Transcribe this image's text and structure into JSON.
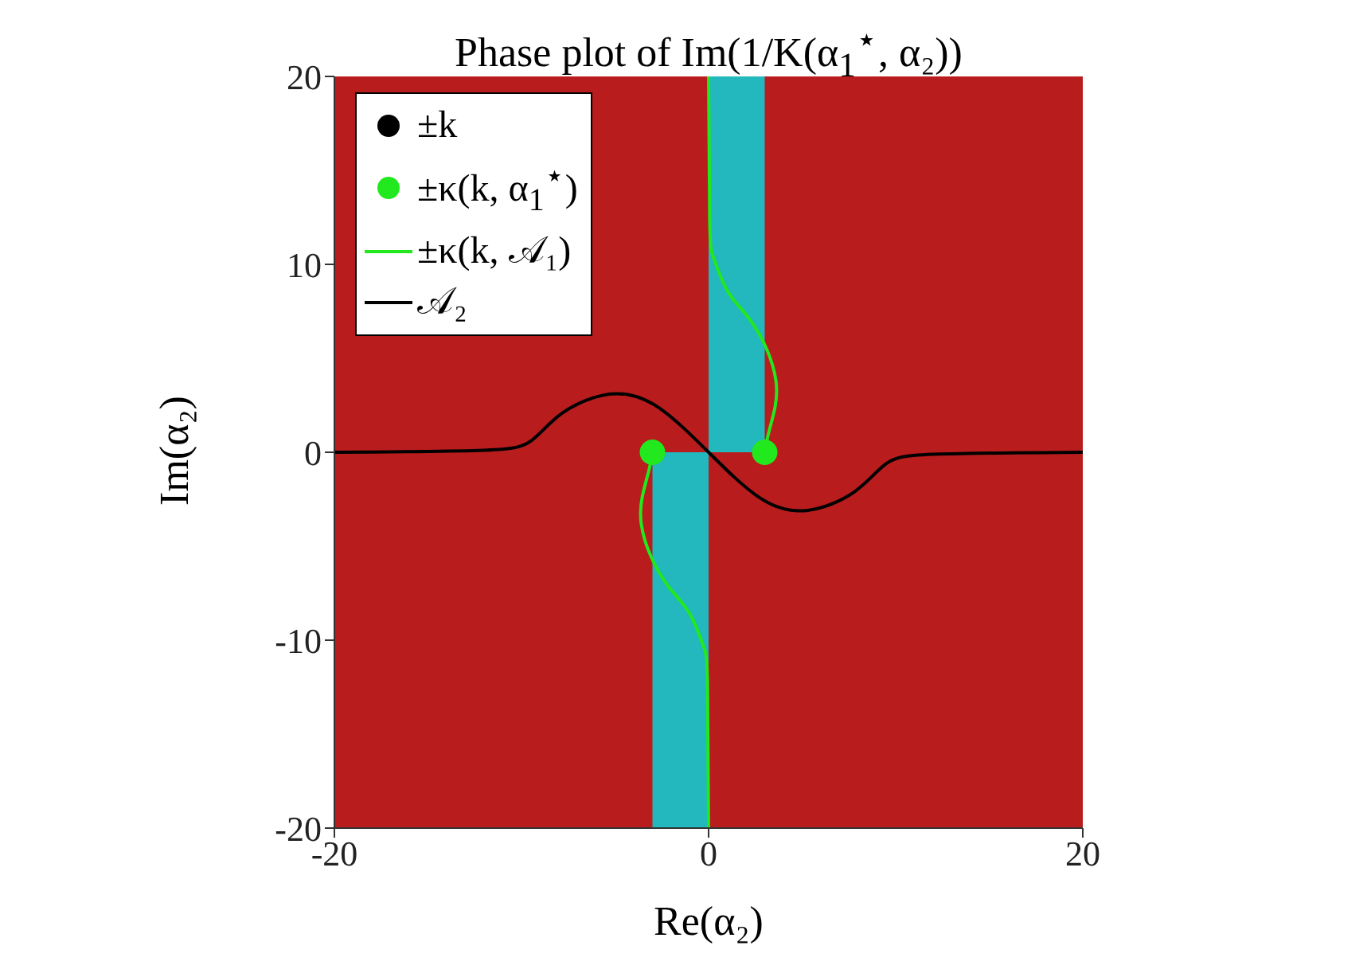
{
  "chart_data": {
    "type": "line",
    "title": "Phase plot of Im(1/K(α$_{1}$$^{⋆}$, α₂))",
    "xlabel": "Re(α₂)",
    "ylabel": "Im(α₂)",
    "xlim": [
      -20,
      20
    ],
    "xticks": [
      -20,
      0,
      20
    ],
    "ylim": [
      -20,
      20
    ],
    "yticks": [
      -20,
      -10,
      0,
      10,
      20
    ],
    "legend": "top left",
    "series": [
      {
        "type": "area",
        "color": "#22b8bd",
        "x": [
          0,
          3
        ],
        "values": [
          20,
          20
        ]
      },
      {
        "type": "area",
        "color": "#22b8bd",
        "x": [
          -3,
          0
        ],
        "values": [
          -20,
          -20
        ]
      },
      {
        "name": "±κ(k, 𝒜₁)",
        "color": "#22e81e",
        "x": [
          0,
          0.06,
          0.28,
          1.0,
          2.1,
          3.1,
          3.6,
          3.55,
          3.2,
          3.0,
          0,
          -3.0,
          -3.2,
          -3.55,
          -3.6,
          -3.1,
          -2.1,
          -1.0,
          -0.28,
          -0.06,
          0
        ],
        "values": [
          20,
          12.3,
          10.3,
          8.6,
          7.2,
          5.5,
          3.8,
          2.4,
          1.0,
          0,
          null,
          0,
          -1.0,
          -2.4,
          -3.8,
          -5.5,
          -7.2,
          -8.6,
          -10.3,
          -12.3,
          -20
        ]
      },
      {
        "name": "𝒜₂",
        "color": "#000000",
        "x": [
          -20,
          -12.3,
          -9.5,
          -7.8,
          -5.2,
          -2.7,
          0,
          2.7,
          5.2,
          7.8,
          9.5,
          12.3,
          20
        ],
        "values": [
          0,
          0.1,
          0.6,
          2.1,
          3.1,
          2.4,
          0,
          -2.4,
          -3.1,
          -2.1,
          -0.6,
          -0.1,
          0
        ]
      },
      {
        "type": "scatter",
        "name": "±k",
        "color": "#000000"
      },
      {
        "type": "scatter",
        "name": "±κ(k, α$_{1}$$^{⋆}$)",
        "color": "#22e81e",
        "x": [
          -3,
          3
        ],
        "values": [
          0,
          0
        ]
      }
    ]
  }
}
